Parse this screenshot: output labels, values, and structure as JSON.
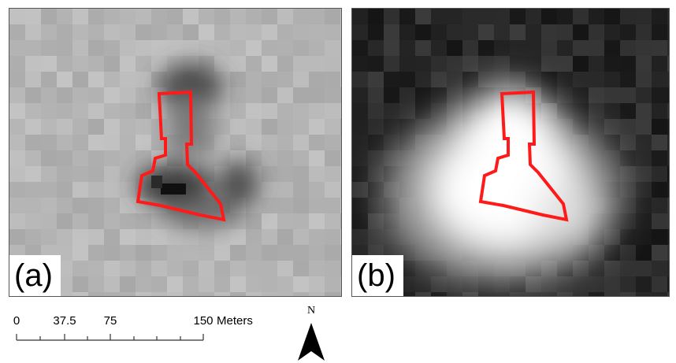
{
  "panels": [
    {
      "id": "a",
      "label": "(a)"
    },
    {
      "id": "b",
      "label": "(b)"
    }
  ],
  "scale_bar": {
    "ticks": [
      "0",
      "37.5",
      "75",
      "150"
    ],
    "unit": "Meters"
  },
  "north_arrow": {
    "label": "N"
  },
  "colors": {
    "outline": "#ff1a1a",
    "frame": "#555555"
  }
}
